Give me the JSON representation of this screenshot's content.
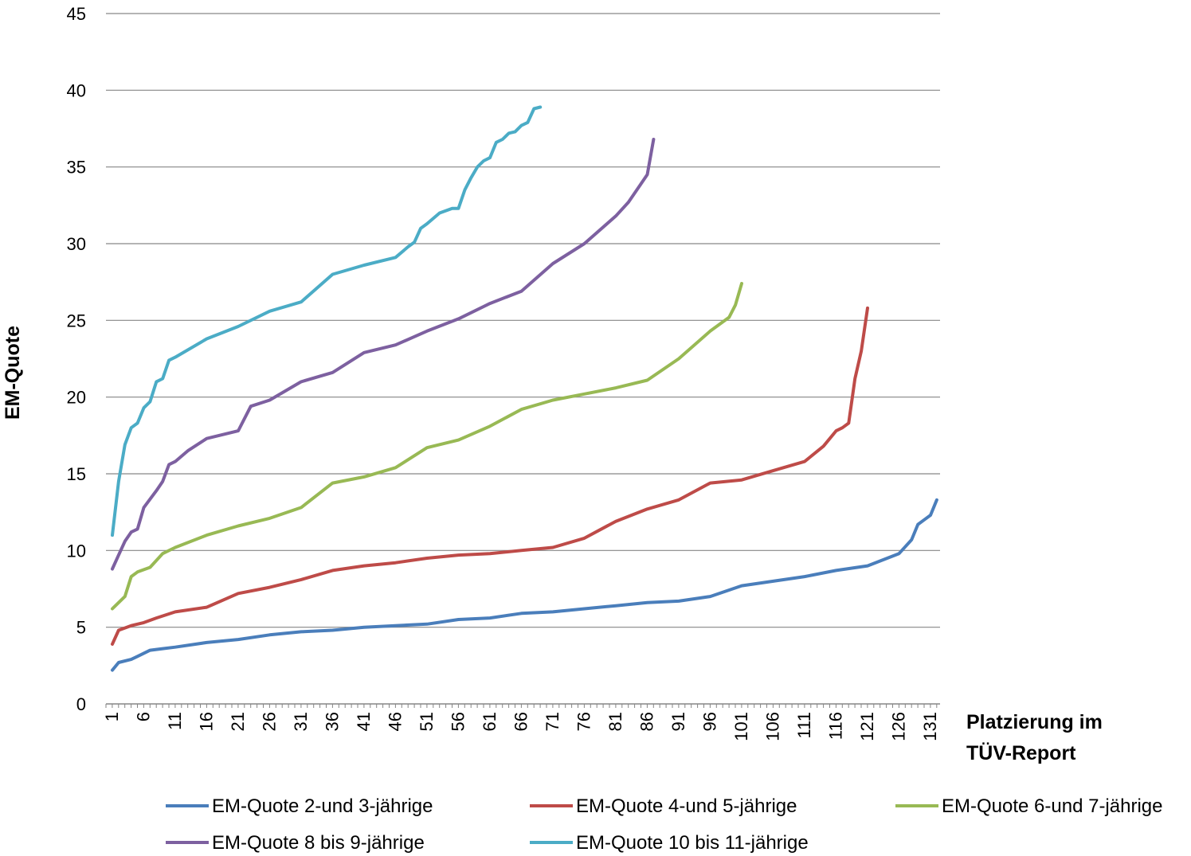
{
  "chart_data": {
    "type": "line",
    "title": "",
    "xlabel": [
      "Platzierung im",
      "TÜV-Report"
    ],
    "ylabel": "EM-Quote",
    "ylim": [
      0,
      45
    ],
    "yticks": [
      0,
      5,
      10,
      15,
      20,
      25,
      30,
      35,
      40,
      45
    ],
    "xlim": [
      1,
      132
    ],
    "xticks": [
      1,
      6,
      11,
      16,
      21,
      26,
      31,
      36,
      41,
      46,
      51,
      56,
      61,
      66,
      71,
      76,
      81,
      86,
      91,
      96,
      101,
      106,
      111,
      116,
      121,
      126,
      131
    ],
    "grid": "horizontal",
    "legend_position": "bottom",
    "series": [
      {
        "name": "EM-Quote 2-und 3-jährige",
        "color": "#4a7ebb",
        "x": [
          1,
          2,
          4,
          5,
          6,
          7,
          9,
          11,
          16,
          21,
          26,
          31,
          36,
          41,
          46,
          51,
          56,
          61,
          66,
          71,
          76,
          81,
          86,
          91,
          96,
          101,
          106,
          111,
          116,
          121,
          126,
          128,
          129,
          130,
          131,
          132
        ],
        "values": [
          2.2,
          2.7,
          2.9,
          3.1,
          3.3,
          3.5,
          3.6,
          3.7,
          4.0,
          4.2,
          4.5,
          4.7,
          4.8,
          5.0,
          5.1,
          5.2,
          5.5,
          5.6,
          5.9,
          6.0,
          6.2,
          6.4,
          6.6,
          6.7,
          7.0,
          7.7,
          8.0,
          8.3,
          8.7,
          9.0,
          9.8,
          10.7,
          11.7,
          12.0,
          12.3,
          13.3
        ]
      },
      {
        "name": "EM-Quote 4-und 5-jährige",
        "color": "#be4b48",
        "x": [
          1,
          2,
          4,
          6,
          8,
          11,
          16,
          21,
          26,
          31,
          36,
          41,
          46,
          51,
          56,
          61,
          66,
          71,
          76,
          81,
          86,
          91,
          96,
          101,
          106,
          111,
          114,
          116,
          117,
          118,
          119,
          120,
          121
        ],
        "values": [
          3.9,
          4.8,
          5.1,
          5.3,
          5.6,
          6.0,
          6.3,
          7.2,
          7.6,
          8.1,
          8.7,
          9.0,
          9.2,
          9.5,
          9.7,
          9.8,
          10.0,
          10.2,
          10.8,
          11.9,
          12.7,
          13.3,
          14.4,
          14.6,
          15.2,
          15.8,
          16.8,
          17.8,
          18.0,
          18.3,
          21.2,
          23.0,
          25.8
        ]
      },
      {
        "name": "EM-Quote 6-und 7-jährige",
        "color": "#98b954",
        "x": [
          1,
          3,
          4,
          5,
          7,
          9,
          11,
          16,
          21,
          26,
          31,
          36,
          41,
          46,
          51,
          56,
          61,
          66,
          71,
          76,
          81,
          86,
          91,
          96,
          98,
          99,
          100,
          101
        ],
        "values": [
          6.2,
          7.0,
          8.3,
          8.6,
          8.9,
          9.8,
          10.2,
          11.0,
          11.6,
          12.1,
          12.8,
          14.4,
          14.8,
          15.4,
          16.7,
          17.2,
          18.1,
          19.2,
          19.8,
          20.2,
          20.6,
          21.1,
          22.5,
          24.3,
          24.9,
          25.2,
          26.0,
          27.4
        ]
      },
      {
        "name": "EM-Quote 8 bis 9-jährige",
        "color": "#7d60a0",
        "x": [
          1,
          2,
          3,
          4,
          5,
          6,
          8,
          9,
          10,
          11,
          13,
          16,
          21,
          23,
          26,
          31,
          36,
          41,
          46,
          51,
          56,
          61,
          66,
          71,
          76,
          81,
          83,
          85,
          86,
          87
        ],
        "values": [
          8.8,
          9.7,
          10.6,
          11.2,
          11.4,
          12.8,
          13.9,
          14.5,
          15.6,
          15.8,
          16.5,
          17.3,
          17.8,
          19.4,
          19.8,
          21.0,
          21.6,
          22.9,
          23.4,
          24.3,
          25.1,
          26.1,
          26.9,
          28.7,
          30.0,
          31.8,
          32.7,
          33.9,
          34.5,
          36.8
        ]
      },
      {
        "name": "EM-Quote 10 bis 11-jährige",
        "color": "#4bacc6",
        "x": [
          1,
          2,
          3,
          4,
          5,
          6,
          7,
          8,
          9,
          10,
          11,
          16,
          21,
          26,
          31,
          36,
          41,
          46,
          48,
          49,
          50,
          51,
          53,
          55,
          56,
          57,
          58,
          59,
          60,
          61,
          62,
          63,
          64,
          65,
          66,
          67,
          68,
          69
        ],
        "values": [
          11.0,
          14.5,
          16.9,
          18.0,
          18.3,
          19.3,
          19.7,
          21.0,
          21.2,
          22.4,
          22.6,
          23.8,
          24.6,
          25.6,
          26.2,
          28.0,
          28.6,
          29.1,
          29.8,
          30.1,
          31.0,
          31.3,
          32.0,
          32.3,
          32.3,
          33.5,
          34.3,
          35.0,
          35.4,
          35.6,
          36.6,
          36.8,
          37.2,
          37.3,
          37.7,
          37.9,
          38.8,
          38.9
        ]
      }
    ]
  }
}
